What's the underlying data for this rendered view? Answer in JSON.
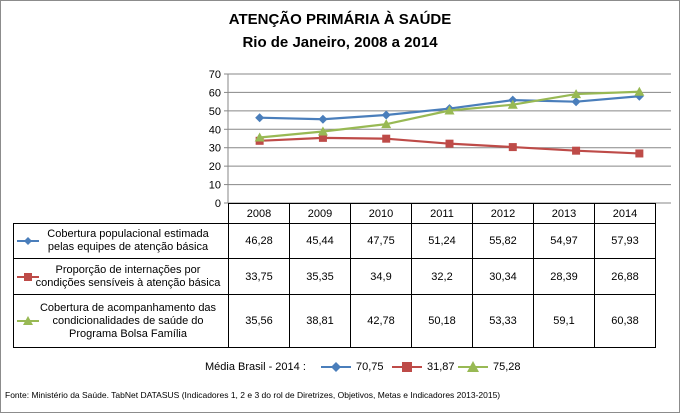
{
  "chart_data": {
    "type": "line",
    "title": "ATENÇÃO PRIMÁRIA À SAÚDE",
    "subtitle": "Rio de Janeiro, 2008 a 2014",
    "categories": [
      "2008",
      "2009",
      "2010",
      "2011",
      "2012",
      "2013",
      "2014"
    ],
    "ylim": [
      0,
      70
    ],
    "yticks": [
      "0",
      "10",
      "20",
      "30",
      "40",
      "50",
      "60",
      "70"
    ],
    "grid": true,
    "series": [
      {
        "name": "Cobertura populacional estimada pelas equipes de atenção básica",
        "label_lines": [
          "Cobertura populacional estimada",
          "pelas equipes de atenção básica"
        ],
        "marker": "diamond",
        "color": "#4a7ebb",
        "values": [
          46.28,
          45.44,
          47.75,
          51.24,
          55.82,
          54.97,
          57.93
        ],
        "display": [
          "46,28",
          "45,44",
          "47,75",
          "51,24",
          "55,82",
          "54,97",
          "57,93"
        ]
      },
      {
        "name": "Proporção de internações por condições sensíveis à atenção básica",
        "label_lines": [
          "Proporção de internações por",
          "condições sensíveis  à atenção básica"
        ],
        "marker": "square",
        "color": "#be4b48",
        "values": [
          33.75,
          35.35,
          34.9,
          32.2,
          30.34,
          28.39,
          26.88
        ],
        "display": [
          "33,75",
          "35,35",
          "34,9",
          "32,2",
          "30,34",
          "28,39",
          "26,88"
        ]
      },
      {
        "name": "Cobertura de acompanhamento das condicionalidades de saúde do Programa Bolsa Família",
        "label_lines": [
          "Cobertura de acompanhamento das",
          "condicionalidades de saúde do",
          "Programa Bolsa Família"
        ],
        "marker": "triangle",
        "color": "#98b954",
        "values": [
          35.56,
          38.81,
          42.78,
          50.18,
          53.33,
          59.1,
          60.38
        ],
        "display": [
          "35,56",
          "38,81",
          "42,78",
          "50,18",
          "53,33",
          "59,1",
          "60,38"
        ]
      }
    ]
  },
  "legend": {
    "prefix": "Média Brasil - 2014 :",
    "values": [
      "70,75",
      "31,87",
      "75,28"
    ]
  },
  "footer": "Fonte: Ministério da Saúde. TabNet DATASUS (Indicadores 1, 2 e 3 do rol de Diretrizes, Objetivos, Metas e Indicadores 2013-2015)"
}
